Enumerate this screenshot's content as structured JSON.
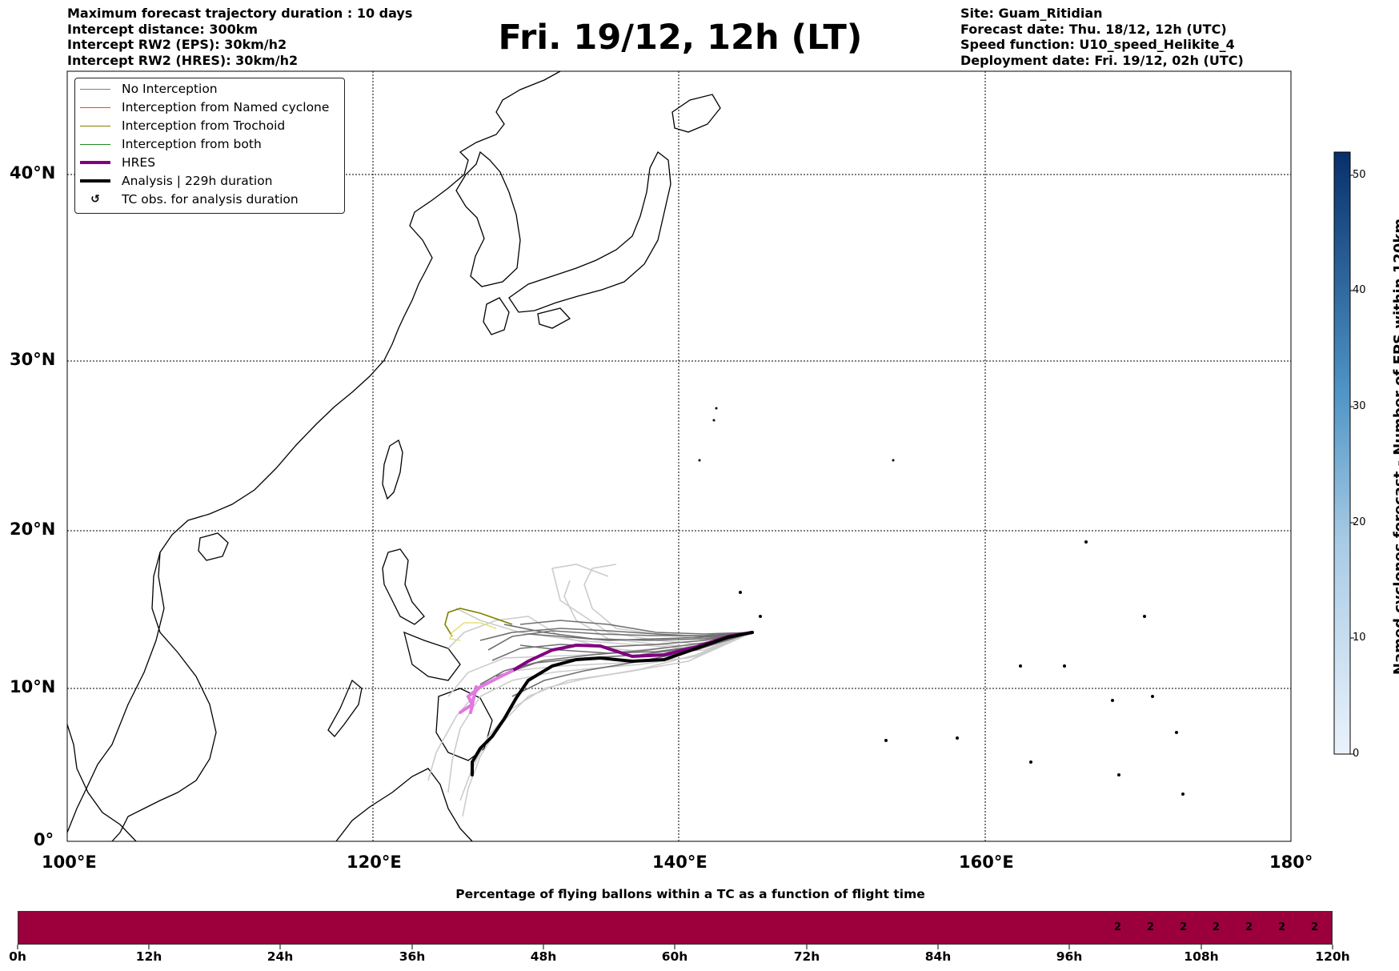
{
  "header_left": [
    "Maximum forecast trajectory duration : 10 days",
    "Intercept distance: 300km",
    "Intercept RW2 (EPS):  30km/h2",
    "Intercept RW2 (HRES): 30km/h2"
  ],
  "title": "Fri. 19/12, 12h (LT)",
  "header_right": [
    "Site: Guam_Ritidian",
    "Forecast date: Thu. 18/12, 12h (UTC)",
    "Speed function: U10_speed_Helikite_4",
    "Deployment date: Fri. 19/12, 02h (UTC)"
  ],
  "legend": [
    {
      "label": "No Interception",
      "color": "#808080",
      "style": "thin"
    },
    {
      "label": "Interception from Named cyclone",
      "color": "#ff4500",
      "style": "thin"
    },
    {
      "label": "Interception from Trochoid",
      "color": "#808000",
      "style": "thin"
    },
    {
      "label": "Interception from both",
      "color": "#228b22",
      "style": "thin"
    },
    {
      "label": "HRES",
      "color": "#800080",
      "style": "thick"
    },
    {
      "label": "Analysis | 229h duration",
      "color": "#000000",
      "style": "thick"
    },
    {
      "label": "TC obs. for analysis duration",
      "color": "#000000",
      "style": "marker",
      "icon": "cyclone-symbol-icon",
      "glyph": "↺"
    }
  ],
  "map": {
    "lat_labels": [
      "40°N",
      "30°N",
      "20°N",
      "10°N",
      "0°"
    ],
    "lon_labels": [
      "100°E",
      "120°E",
      "140°E",
      "160°E",
      "180°"
    ],
    "extent": {
      "lon": [
        100,
        180
      ],
      "lat": [
        0,
        45
      ]
    }
  },
  "colorbar": {
    "label": "Named cyclones forecast - Number of EPS within 120km",
    "ticks": [
      "0",
      "10",
      "20",
      "30",
      "40",
      "50"
    ],
    "range": [
      0,
      52
    ],
    "color_low": "#eaf2fb",
    "color_high": "#08306b"
  },
  "percentage_bar": {
    "title": "Percentage of flying ballons within a TC as a function of flight time",
    "color": "#9b003c",
    "values": [
      "2",
      "2",
      "2",
      "2",
      "2",
      "2",
      "2"
    ],
    "ticks": [
      "0h",
      "12h",
      "24h",
      "36h",
      "48h",
      "60h",
      "72h",
      "84h",
      "96h",
      "108h",
      "120h"
    ]
  }
}
